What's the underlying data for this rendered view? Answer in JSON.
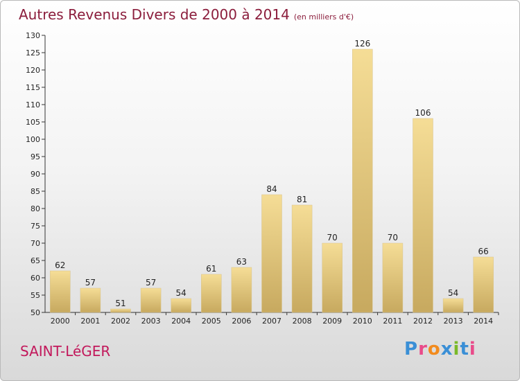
{
  "chart_data": {
    "type": "bar",
    "title": "Autres Revenus Divers de 2000 à 2014",
    "subtitle": "(en milliers d'€)",
    "categories": [
      "2000",
      "2001",
      "2002",
      "2003",
      "2004",
      "2005",
      "2006",
      "2007",
      "2008",
      "2009",
      "2010",
      "2011",
      "2012",
      "2013",
      "2014"
    ],
    "values": [
      62,
      57,
      51,
      57,
      54,
      61,
      63,
      84,
      81,
      70,
      126,
      70,
      106,
      54,
      66
    ],
    "ylim": [
      50,
      130
    ],
    "yticks": [
      50,
      55,
      60,
      65,
      70,
      75,
      80,
      85,
      90,
      95,
      100,
      105,
      110,
      115,
      120,
      125,
      130
    ],
    "grid": false,
    "bar_color_top": "#f5dd96",
    "bar_color_bottom": "#c7a95f"
  },
  "commune": "SAINT-LéGER",
  "logo": {
    "text": "Proxiti",
    "colors": [
      "#3a8fd6",
      "#e94b8a",
      "#f28b1e",
      "#3a8fd6",
      "#7ab929",
      "#3a8fd6",
      "#e94b8a"
    ]
  }
}
